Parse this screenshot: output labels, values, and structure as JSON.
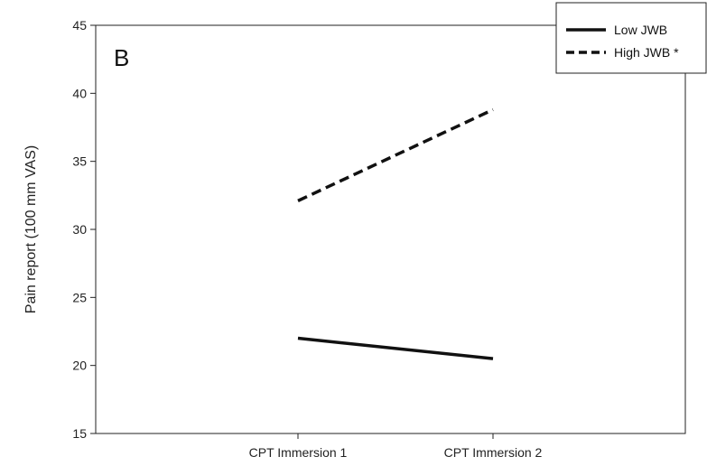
{
  "chart_data": {
    "type": "line",
    "panel_label": "B",
    "title": "",
    "xlabel": "",
    "ylabel": "Pain report (100 mm VAS)",
    "categories": [
      "CPT Immersion 1",
      "CPT Immersion 2"
    ],
    "ylim": [
      15,
      45
    ],
    "yticks": [
      15,
      20,
      25,
      30,
      35,
      40,
      45
    ],
    "grid": false,
    "legend_position": "top-right",
    "series": [
      {
        "name": "Low JWB",
        "values": [
          22.0,
          20.5
        ],
        "style": "solid",
        "color": "#111111"
      },
      {
        "name": "High JWB *",
        "values": [
          32.1,
          38.8
        ],
        "style": "dashed",
        "color": "#111111"
      }
    ]
  }
}
